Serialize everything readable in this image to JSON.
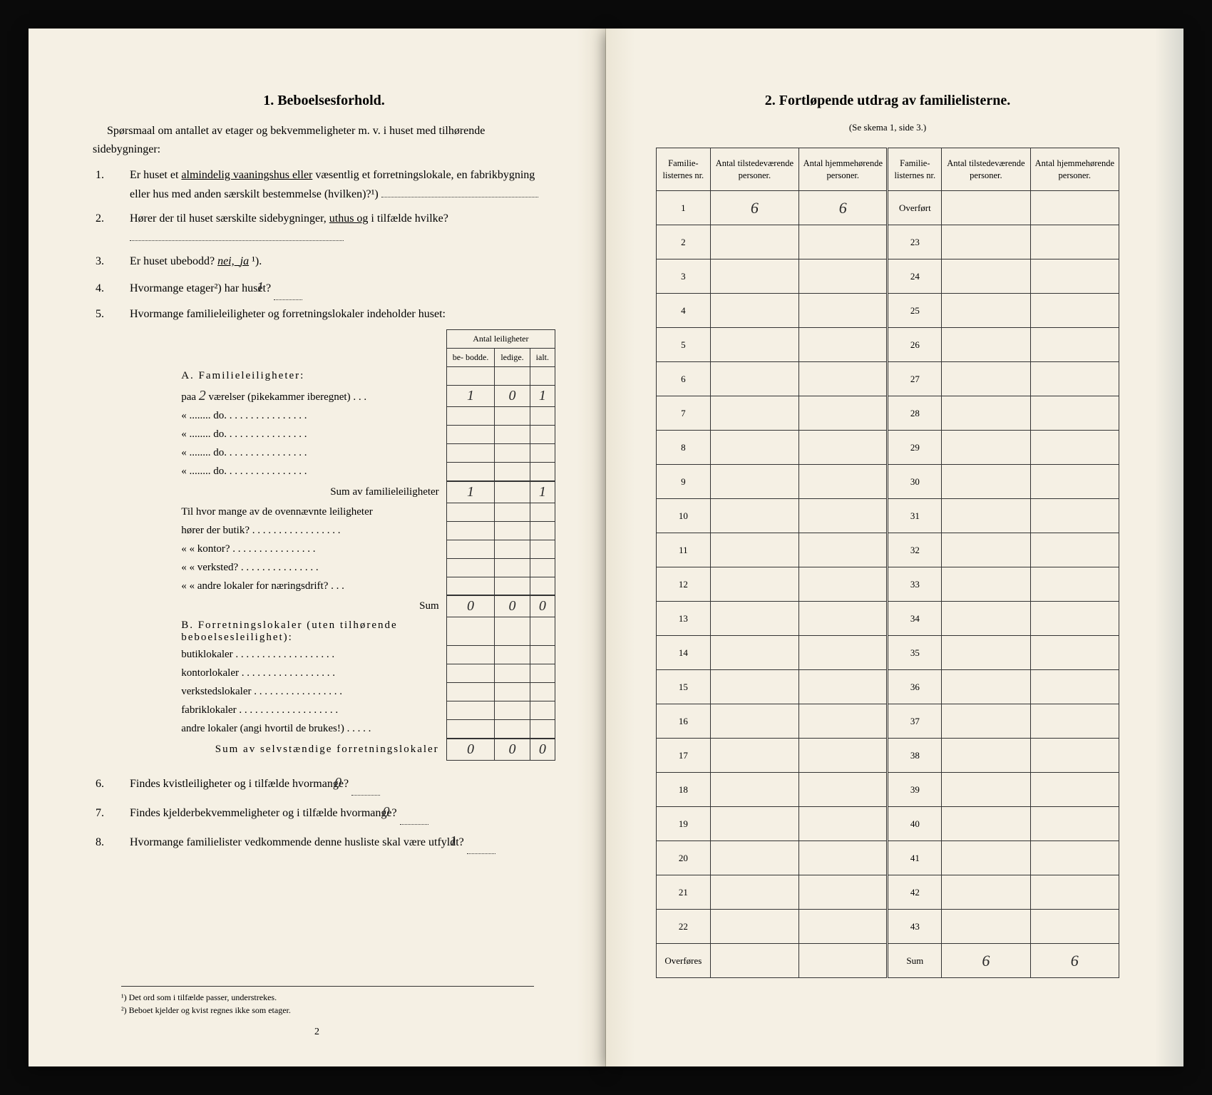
{
  "left": {
    "title": "1.   Beboelsesforhold.",
    "intro": "Spørsmaal om antallet av etager og bekvemmeligheter m. v. i huset med tilhørende sidebygninger:",
    "q1_pre": "Er huset et ",
    "q1_u": "almindelig vaaningshus eller",
    "q1_post": " væsentlig et forretningslokale, en fabrikbygning eller hus med anden særskilt bestemmelse (hvilken)?¹)",
    "q2_pre": "Hører der til huset særskilte sidebygninger, ",
    "q2_u": "uthus og",
    "q2_post": " i tilfælde hvilke?",
    "q3_pre": "Er huset ubebodd? ",
    "q3_nei": "nei,",
    "q3_ja": "ja",
    "q3_post": " ¹).",
    "q4_pre": "Hvormange etager²) har huset?",
    "q4_ans": "1",
    "q5": "Hvormange familieleiligheter og forretningslokaler indeholder huset:",
    "mini_header_group": "Antal leiligheter",
    "mini_headers": [
      "be-\nbodde.",
      "ledige.",
      "ialt."
    ],
    "sectA_title": "A. Familieleiligheter:",
    "sectA_rows": [
      {
        "label_pre": "paa ",
        "label_hand": "2",
        "label_post": " værelser (pikekammer iberegnet) . . .",
        "vals": [
          "1",
          "0",
          "1"
        ]
      },
      {
        "label": "«  ........   do.   . . . . . . . . . . . . . . .",
        "vals": [
          "",
          "",
          ""
        ]
      },
      {
        "label": "«  ........   do.   . . . . . . . . . . . . . . .",
        "vals": [
          "",
          "",
          ""
        ]
      },
      {
        "label": "«  ........   do.   . . . . . . . . . . . . . . .",
        "vals": [
          "",
          "",
          ""
        ]
      },
      {
        "label": "«  ........   do.   . . . . . . . . . . . . . . .",
        "vals": [
          "",
          "",
          ""
        ]
      }
    ],
    "sectA_sum_label": "Sum av familieleiligheter",
    "sectA_sum": [
      "1",
      "",
      "1"
    ],
    "sectA_sub": [
      "Til hvor mange av de ovennævnte leiligheter",
      "hører der butik? . . . . . . . . . . . . . . . . .",
      "«    « kontor? . . . . . . . . . . . . . . . .",
      "«    « verksted? . . . . . . . . . . . . . . .",
      "«    « andre lokaler for næringsdrift? . . ."
    ],
    "sectA_sub_sum_label": "Sum",
    "sectA_sub_sum": [
      "0",
      "0",
      "0"
    ],
    "sectB_title": "B. Forretningslokaler (uten tilhørende beboelsesleilighet):",
    "sectB_rows": [
      "butiklokaler . . . . . . . . . . . . . . . . . . .",
      "kontorlokaler  . . . . . . . . . . . . . . . . . .",
      "verkstedslokaler . . . . . . . . . . . . . . . . .",
      "fabriklokaler . . . . . . . . . . . . . . . . . . .",
      "andre lokaler (angi hvortil de brukes!) . . . . ."
    ],
    "sectB_sum_label": "Sum av selvstændige forretningslokaler",
    "sectB_sum": [
      "0",
      "0",
      "0"
    ],
    "q6_pre": "Findes kvistleiligheter og i tilfælde hvormange?",
    "q6_ans": "0",
    "q7_pre": "Findes kjelderbekvemmeligheter og i tilfælde hvormange?",
    "q7_ans": "0",
    "q8_pre": "Hvormange familielister vedkommende denne husliste skal være utfyldt?",
    "q8_ans": "1",
    "footnote1": "¹) Det ord som i tilfælde passer, understrekes.",
    "footnote2": "²) Beboet kjelder og kvist regnes ikke som etager.",
    "page_num": "2"
  },
  "right": {
    "title": "2.   Fortløpende utdrag av familielisterne.",
    "subtitle": "(Se skema 1, side 3.)",
    "headers": [
      "Familie-\nlisternes\nnr.",
      "Antal\ntilstedeværende\npersoner.",
      "Antal\nhjemmehørende\npersoner.",
      "Familie-\nlisternes\nnr.",
      "Antal\ntilstedeværende\npersoner.",
      "Antal\nhjemmehørende\npersoner."
    ],
    "rows": [
      {
        "l": "1",
        "lv1": "6",
        "lv2": "6",
        "r": "Overført",
        "rv1": "",
        "rv2": ""
      },
      {
        "l": "2",
        "lv1": "",
        "lv2": "",
        "r": "23",
        "rv1": "",
        "rv2": ""
      },
      {
        "l": "3",
        "lv1": "",
        "lv2": "",
        "r": "24",
        "rv1": "",
        "rv2": ""
      },
      {
        "l": "4",
        "lv1": "",
        "lv2": "",
        "r": "25",
        "rv1": "",
        "rv2": ""
      },
      {
        "l": "5",
        "lv1": "",
        "lv2": "",
        "r": "26",
        "rv1": "",
        "rv2": ""
      },
      {
        "l": "6",
        "lv1": "",
        "lv2": "",
        "r": "27",
        "rv1": "",
        "rv2": ""
      },
      {
        "l": "7",
        "lv1": "",
        "lv2": "",
        "r": "28",
        "rv1": "",
        "rv2": ""
      },
      {
        "l": "8",
        "lv1": "",
        "lv2": "",
        "r": "29",
        "rv1": "",
        "rv2": ""
      },
      {
        "l": "9",
        "lv1": "",
        "lv2": "",
        "r": "30",
        "rv1": "",
        "rv2": ""
      },
      {
        "l": "10",
        "lv1": "",
        "lv2": "",
        "r": "31",
        "rv1": "",
        "rv2": ""
      },
      {
        "l": "11",
        "lv1": "",
        "lv2": "",
        "r": "32",
        "rv1": "",
        "rv2": ""
      },
      {
        "l": "12",
        "lv1": "",
        "lv2": "",
        "r": "33",
        "rv1": "",
        "rv2": ""
      },
      {
        "l": "13",
        "lv1": "",
        "lv2": "",
        "r": "34",
        "rv1": "",
        "rv2": ""
      },
      {
        "l": "14",
        "lv1": "",
        "lv2": "",
        "r": "35",
        "rv1": "",
        "rv2": ""
      },
      {
        "l": "15",
        "lv1": "",
        "lv2": "",
        "r": "36",
        "rv1": "",
        "rv2": ""
      },
      {
        "l": "16",
        "lv1": "",
        "lv2": "",
        "r": "37",
        "rv1": "",
        "rv2": ""
      },
      {
        "l": "17",
        "lv1": "",
        "lv2": "",
        "r": "38",
        "rv1": "",
        "rv2": ""
      },
      {
        "l": "18",
        "lv1": "",
        "lv2": "",
        "r": "39",
        "rv1": "",
        "rv2": ""
      },
      {
        "l": "19",
        "lv1": "",
        "lv2": "",
        "r": "40",
        "rv1": "",
        "rv2": ""
      },
      {
        "l": "20",
        "lv1": "",
        "lv2": "",
        "r": "41",
        "rv1": "",
        "rv2": ""
      },
      {
        "l": "21",
        "lv1": "",
        "lv2": "",
        "r": "42",
        "rv1": "",
        "rv2": ""
      },
      {
        "l": "22",
        "lv1": "",
        "lv2": "",
        "r": "43",
        "rv1": "",
        "rv2": ""
      },
      {
        "l": "Overføres",
        "lv1": "",
        "lv2": "",
        "r": "Sum",
        "rv1": "6",
        "rv2": "6"
      }
    ]
  },
  "colors": {
    "paper": "#f5f0e4",
    "ink": "#1a1a1a",
    "bg": "#0a0a0a"
  }
}
